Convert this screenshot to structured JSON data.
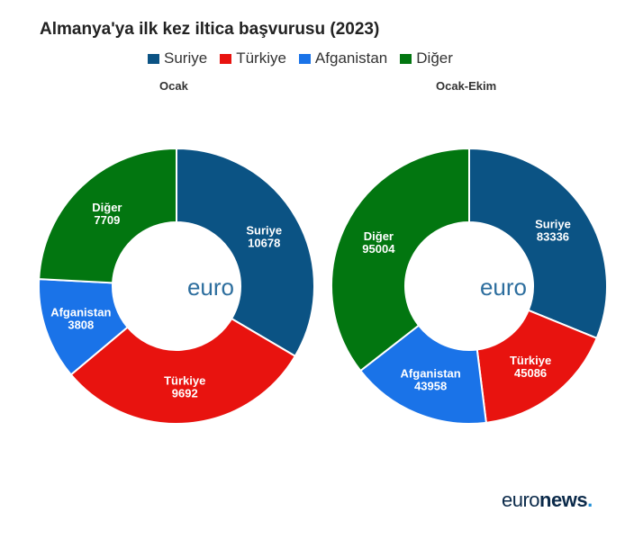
{
  "header": {
    "title": "Almanya'ya ilk kez iltica başvurusu (2023)"
  },
  "colors": {
    "Suriye": "#0b5384",
    "Türkiye": "#e8130f",
    "Afganistan": "#1a73e8",
    "Diğer": "#027610"
  },
  "chart_data": [
    {
      "type": "pie",
      "subtitle": "Ocak",
      "categories": [
        "Suriye",
        "Türkiye",
        "Afganistan",
        "Diğer"
      ],
      "values": [
        10678,
        9692,
        3808,
        7709
      ],
      "legend_placement": "top",
      "center_text": "euro"
    },
    {
      "type": "pie",
      "subtitle": "Ocak-Ekim",
      "categories": [
        "Suriye",
        "Türkiye",
        "Afganistan",
        "Diğer"
      ],
      "values": [
        83336,
        45086,
        43958,
        95004
      ],
      "legend_placement": "top",
      "center_text": "euro"
    }
  ],
  "brand": {
    "part1": "euro",
    "part2": "news",
    "dot": "."
  }
}
